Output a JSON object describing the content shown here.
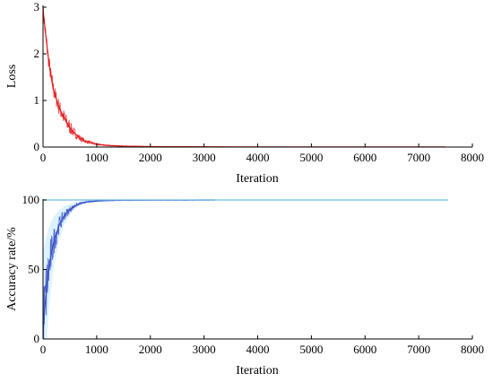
{
  "chart_data": [
    {
      "type": "line",
      "xlabel": "Iteration",
      "ylabel": "Loss",
      "xlim": [
        0,
        8000
      ],
      "ylim": [
        0,
        3
      ],
      "x_ticks": [
        0,
        1000,
        2000,
        3000,
        4000,
        5000,
        6000,
        7000,
        8000
      ],
      "y_ticks": [
        0,
        1,
        2,
        3
      ],
      "grid": false,
      "series": [
        {
          "color": "#e31a1c",
          "x": [
            0,
            50,
            100,
            150,
            200,
            300,
            400,
            500,
            600,
            700,
            800,
            1000,
            1200,
            1500,
            2000,
            2500,
            3000,
            3500,
            4000,
            5000,
            6000,
            7000,
            7500
          ],
          "y": [
            2.95,
            2.4,
            1.9,
            1.5,
            1.2,
            0.85,
            0.6,
            0.42,
            0.28,
            0.18,
            0.12,
            0.06,
            0.035,
            0.02,
            0.01,
            0.008,
            0.006,
            0.004,
            0.003,
            0.002,
            0.002,
            0.001,
            0.001
          ]
        }
      ]
    },
    {
      "type": "line",
      "xlabel": "Iteration",
      "ylabel": "Accuracy rate/%",
      "xlim": [
        0,
        8000
      ],
      "ylim": [
        0,
        100
      ],
      "x_ticks": [
        0,
        1000,
        2000,
        3000,
        4000,
        5000,
        6000,
        7000,
        8000
      ],
      "y_ticks": [
        0,
        50,
        100
      ],
      "grid": false,
      "series": [
        {
          "color": "#3b4fc4",
          "x": [
            0,
            50,
            100,
            150,
            200,
            300,
            400,
            500,
            600,
            700,
            800,
            1000,
            1200,
            1500,
            2000,
            2500,
            3000,
            3200
          ],
          "y": [
            5,
            30,
            48,
            60,
            70,
            82,
            89,
            93,
            96,
            97.5,
            98.5,
            99.3,
            99.6,
            99.8,
            99.9,
            99.9,
            100,
            100
          ]
        },
        {
          "color": "#6cb6e8",
          "x": [
            0,
            1000,
            2000,
            3000,
            3300,
            4000,
            5000,
            6000,
            7000,
            7550
          ],
          "y": [
            100,
            100,
            100,
            100,
            100,
            100,
            100,
            100,
            100,
            100
          ]
        }
      ]
    }
  ]
}
